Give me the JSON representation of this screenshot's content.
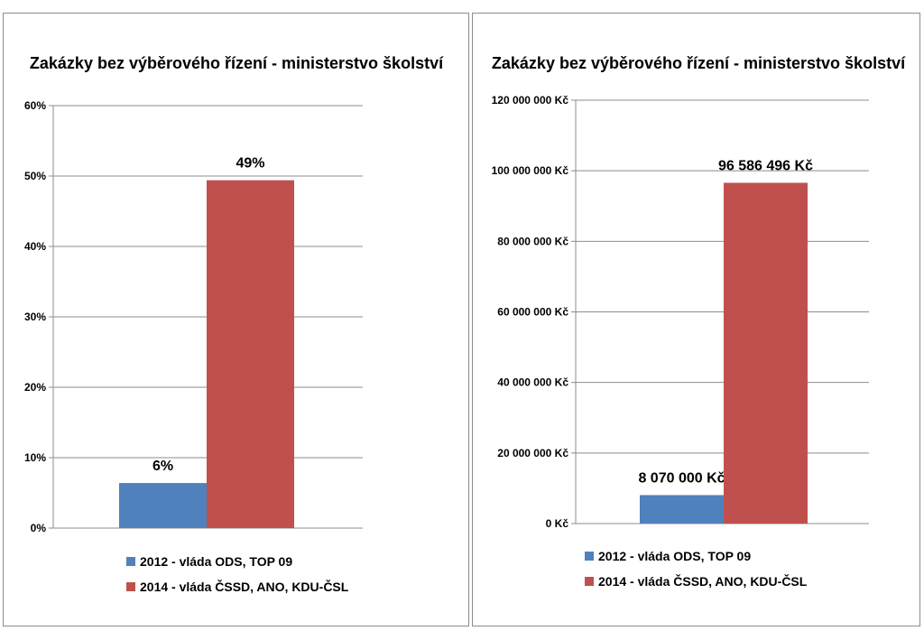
{
  "chart_data": [
    {
      "type": "bar",
      "title": "Zakázky bez výběrového řízení - ministerstvo školství",
      "categories": [
        ""
      ],
      "series": [
        {
          "name": "2012 -  vláda ODS, TOP 09",
          "values": [
            6.4
          ],
          "label": "6%",
          "color": "#4f81bd"
        },
        {
          "name": "2014 - vláda ČSSD, ANO, KDU-ČSL",
          "values": [
            49.4
          ],
          "label": "49%",
          "color": "#c0504d"
        }
      ],
      "ylim": [
        0,
        60
      ],
      "yticks": [
        "0%",
        "10%",
        "20%",
        "30%",
        "40%",
        "50%",
        "60%"
      ],
      "grid": true,
      "legend_position": "bottom"
    },
    {
      "type": "bar",
      "title": "Zakázky bez výběrového řízení - ministerstvo školství",
      "categories": [
        ""
      ],
      "series": [
        {
          "name": "2012 -  vláda ODS, TOP 09",
          "values": [
            8070000
          ],
          "label": "8 070 000 Kč",
          "color": "#4f81bd"
        },
        {
          "name": "2014 - vláda ČSSD, ANO, KDU-ČSL",
          "values": [
            96586496
          ],
          "label": "96 586 496 Kč",
          "color": "#c0504d"
        }
      ],
      "ylim": [
        0,
        120000000
      ],
      "yticks": [
        "0 Kč",
        "20 000 000 Kč",
        "40 000 000 Kč",
        "60 000 000 Kč",
        "80 000 000 Kč",
        "100 000 000 Kč",
        "120 000 000 Kč"
      ],
      "grid": true,
      "legend_position": "bottom"
    }
  ]
}
